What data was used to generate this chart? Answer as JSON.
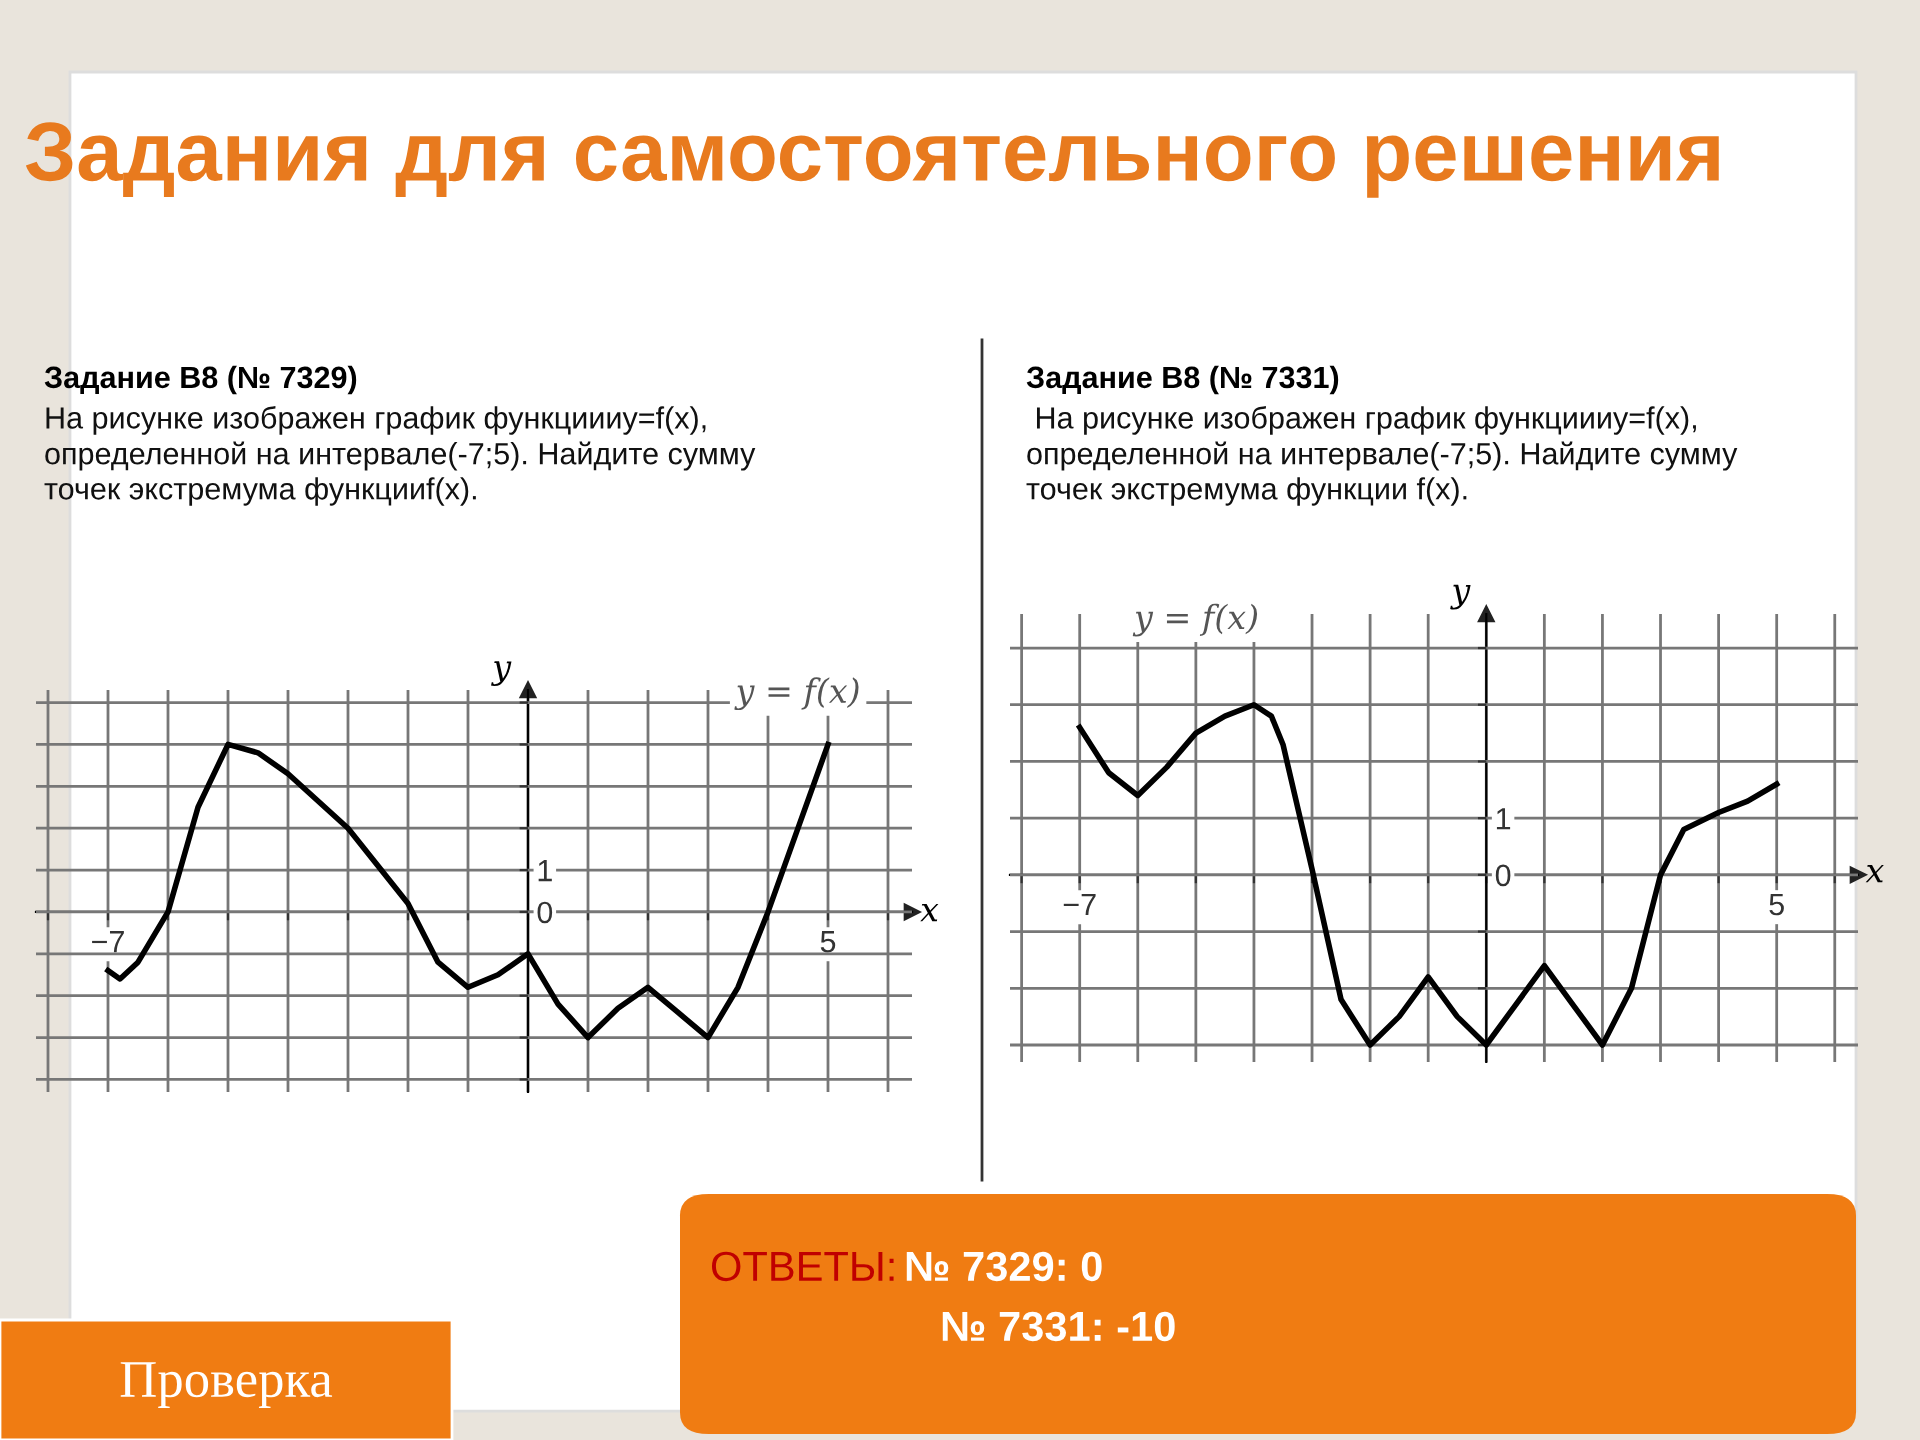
{
  "chart_data": [
    {
      "type": "line",
      "title": "Задание В8 (№ 7329)",
      "subtitle": "На рисунке изображен график функциииy=f(x),\nопределенной на интервале(-7;5). Найдите сумму\nточек экстремума функцииf(x).",
      "xlabel": "x",
      "ylabel": "y",
      "annotations": [
        "Задания для самостоятельного решения",
        "ОТВЕТЫ:",
        "№ 7329: 0",
        "№ 7331: -10",
        "Проверка"
      ],
      "series": [
        {
          "name": "y = f(x)",
          "color": "#000000",
          "x": [
            -7,
            -6.8,
            -6.5,
            -6,
            -5.5,
            -5,
            -4.5,
            -4,
            -3,
            -2,
            -1.5,
            -1,
            -0.5,
            0,
            0.5,
            1,
            1.5,
            2,
            2.5,
            3,
            3.5,
            4,
            4.5,
            5
          ],
          "values": [
            -1.4,
            -1.6,
            -1.2,
            0,
            2.5,
            4,
            3.8,
            3.3,
            2,
            0.2,
            -1.2,
            -1.8,
            -1.5,
            -1,
            -2.2,
            -3,
            -2.3,
            -1.8,
            -2.4,
            -3,
            -1.8,
            0,
            2,
            4
          ]
        }
      ],
      "xlim": [
        -8.2,
        6.4
      ],
      "ylim": [
        -4.3,
        5.3
      ],
      "xticks": [
        {
          "value": -8,
          "label": null
        },
        {
          "value": -7,
          "label": "−7"
        },
        {
          "value": -6,
          "label": null
        },
        {
          "value": -5,
          "label": null
        },
        {
          "value": -4,
          "label": null
        },
        {
          "value": -3,
          "label": null
        },
        {
          "value": -2,
          "label": null
        },
        {
          "value": -1,
          "label": null
        },
        {
          "value": 0,
          "label": null
        },
        {
          "value": 1,
          "label": null
        },
        {
          "value": 2,
          "label": null
        },
        {
          "value": 3,
          "label": null
        },
        {
          "value": 4,
          "label": null
        },
        {
          "value": 5,
          "label": "5"
        },
        {
          "value": 6,
          "label": null
        }
      ],
      "yticks": [
        {
          "value": -4,
          "label": null
        },
        {
          "value": -3,
          "label": null
        },
        {
          "value": -2,
          "label": null
        },
        {
          "value": -1,
          "label": null
        },
        {
          "value": 0,
          "label": "0"
        },
        {
          "value": 1,
          "label": "1"
        },
        {
          "value": 2,
          "label": null
        },
        {
          "value": 3,
          "label": null
        },
        {
          "value": 4,
          "label": null
        },
        {
          "value": 5,
          "label": null
        }
      ],
      "grid": true
    },
    {
      "type": "line",
      "title": "Задание В8 (№ 7331)",
      "subtitle": " На рисунке изображен график функциииy=f(x),\nопределенной на интервале(-7;5). Найдите сумму\nточек экстремума функции f(x).",
      "xlabel": "x",
      "ylabel": "y",
      "series": [
        {
          "name": "y = f(x)",
          "color": "#000000",
          "x": [
            -7,
            -6.5,
            -6,
            -5.5,
            -5,
            -4.5,
            -4,
            -3.7,
            -3.5,
            -3,
            -2.5,
            -2,
            -1.5,
            -1,
            -0.5,
            0,
            0.5,
            1,
            1.5,
            2,
            2.5,
            3,
            3.4,
            4,
            4.5,
            5
          ],
          "values": [
            2.6,
            1.8,
            1.4,
            1.9,
            2.5,
            2.8,
            3,
            2.8,
            2.3,
            0.1,
            -2.2,
            -3,
            -2.5,
            -1.8,
            -2.5,
            -3,
            -2.3,
            -1.6,
            -2.3,
            -3,
            -2,
            0,
            0.8,
            1.1,
            1.3,
            1.6
          ]
        }
      ],
      "xlim": [
        -8.2,
        6.4
      ],
      "ylim": [
        -3.3,
        4.6
      ],
      "xticks": [
        {
          "value": -8,
          "label": null
        },
        {
          "value": -7,
          "label": "−7"
        },
        {
          "value": -6,
          "label": null
        },
        {
          "value": -5,
          "label": null
        },
        {
          "value": -4,
          "label": null
        },
        {
          "value": -3,
          "label": null
        },
        {
          "value": -2,
          "label": null
        },
        {
          "value": -1,
          "label": null
        },
        {
          "value": 0,
          "label": null
        },
        {
          "value": 1,
          "label": null
        },
        {
          "value": 2,
          "label": null
        },
        {
          "value": 3,
          "label": null
        },
        {
          "value": 4,
          "label": null
        },
        {
          "value": 5,
          "label": "5"
        },
        {
          "value": 6,
          "label": null
        }
      ],
      "yticks": [
        {
          "value": -3,
          "label": null
        },
        {
          "value": -2,
          "label": null
        },
        {
          "value": -1,
          "label": null
        },
        {
          "value": 0,
          "label": "0"
        },
        {
          "value": 1,
          "label": "1"
        },
        {
          "value": 2,
          "label": null
        },
        {
          "value": 3,
          "label": null
        },
        {
          "value": 4,
          "label": null
        }
      ],
      "grid": true
    }
  ]
}
